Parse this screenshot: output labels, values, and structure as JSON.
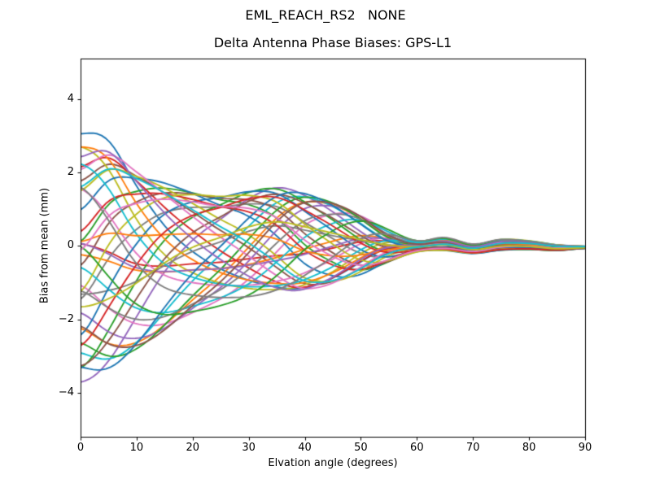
{
  "window": {
    "background": "#ffffff",
    "text_color": "#000000",
    "axis_color": "#000000"
  },
  "chart_data": {
    "type": "line",
    "title": "EML_REACH_RS2   NONE",
    "subtitle": "Delta Antenna Phase Biases: GPS-L1",
    "xlabel": "Elvation angle (degrees)",
    "ylabel": "Bias from mean (mm)",
    "xlim": [
      0,
      90
    ],
    "ylim": [
      -5.2,
      5.1
    ],
    "xticks": [
      0,
      10,
      20,
      30,
      40,
      50,
      60,
      70,
      80,
      90
    ],
    "xtick_labels": [
      "0",
      "10",
      "20",
      "30",
      "40",
      "50",
      "60",
      "70",
      "80",
      "90"
    ],
    "yticks": [
      -4,
      -2,
      0,
      2,
      4
    ],
    "ytick_labels": [
      "−4",
      "−2",
      "0",
      "2",
      "4"
    ],
    "grid": false,
    "legend": "none",
    "n_series": 40,
    "line_width": 1.9,
    "color_cycle": [
      "#1f77b4",
      "#ff7f0e",
      "#2ca02c",
      "#d62728",
      "#9467bd",
      "#8c564b",
      "#e377c2",
      "#7f7f7f",
      "#bcbd22",
      "#17becf"
    ],
    "x_samples": [
      0,
      5,
      10,
      15,
      20,
      25,
      30,
      35,
      40,
      45,
      50,
      55,
      60,
      65,
      70,
      75,
      80,
      85,
      90
    ],
    "envelope_upper": [
      3.05,
      3.1,
      2.5,
      2.1,
      1.8,
      1.62,
      1.7,
      1.77,
      1.6,
      1.3,
      0.92,
      0.45,
      0.15,
      0.23,
      0.05,
      0.18,
      0.14,
      0.03,
      -0.01
    ],
    "envelope_lower": [
      -3.79,
      -3.55,
      -3.05,
      -2.55,
      -2.1,
      -1.8,
      -1.6,
      -1.45,
      -1.35,
      -1.13,
      -0.82,
      -0.45,
      -0.17,
      -0.13,
      -0.21,
      -0.12,
      -0.1,
      -0.12,
      -0.07
    ],
    "band_center": [
      -0.37,
      -0.23,
      -0.28,
      -0.23,
      -0.15,
      -0.09,
      0.05,
      0.16,
      0.13,
      0.09,
      0.05,
      0.0,
      -0.01,
      0.05,
      -0.08,
      0.03,
      0.02,
      -0.05,
      -0.04
    ],
    "band_halfwidth": [
      3.42,
      3.33,
      2.78,
      2.33,
      1.95,
      1.71,
      1.65,
      1.61,
      1.48,
      1.22,
      0.87,
      0.45,
      0.16,
      0.18,
      0.13,
      0.15,
      0.12,
      0.08,
      0.03
    ],
    "weave_rotation_rad": [
      0.0,
      0.35,
      0.75,
      1.15,
      1.5,
      1.85,
      2.25,
      2.7,
      3.2,
      3.6,
      4.1,
      4.65,
      5.05,
      5.25,
      5.45,
      5.65,
      5.85,
      6.05,
      6.3
    ],
    "convergence_deg": 58,
    "spread_at_zero_mm": [
      -3.8,
      3.1
    ],
    "series_params": [
      [
        0.0,
        1.0
      ],
      [
        2.4,
        0.9
      ],
      [
        4.8,
        0.95
      ],
      [
        0.92,
        0.32
      ],
      [
        3.32,
        1.0
      ],
      [
        5.72,
        0.88
      ],
      [
        1.83,
        0.93
      ],
      [
        4.23,
        0.8
      ],
      [
        0.35,
        0.98
      ],
      [
        2.75,
        0.9
      ],
      [
        5.15,
        0.96
      ],
      [
        1.27,
        0.38
      ],
      [
        3.67,
        1.0
      ],
      [
        6.07,
        0.87
      ],
      [
        2.18,
        0.92
      ],
      [
        4.58,
        0.95
      ],
      [
        0.7,
        0.82
      ],
      [
        3.1,
        0.26
      ],
      [
        5.5,
        0.9
      ],
      [
        1.62,
        0.86
      ],
      [
        4.02,
        1.0
      ],
      [
        0.13,
        0.9
      ],
      [
        2.53,
        0.95
      ],
      [
        4.93,
        0.85
      ],
      [
        1.05,
        0.42
      ],
      [
        3.45,
        0.88
      ],
      [
        5.85,
        0.93
      ],
      [
        1.97,
        0.8
      ],
      [
        4.37,
        0.98
      ],
      [
        0.48,
        0.9
      ],
      [
        2.88,
        0.96
      ],
      [
        5.28,
        0.3
      ],
      [
        1.4,
        1.0
      ],
      [
        3.8,
        0.87
      ],
      [
        6.2,
        0.92
      ],
      [
        2.32,
        0.95
      ],
      [
        4.72,
        0.82
      ],
      [
        0.84,
        1.0
      ],
      [
        3.24,
        0.35
      ],
      [
        5.64,
        0.86
      ]
    ]
  }
}
